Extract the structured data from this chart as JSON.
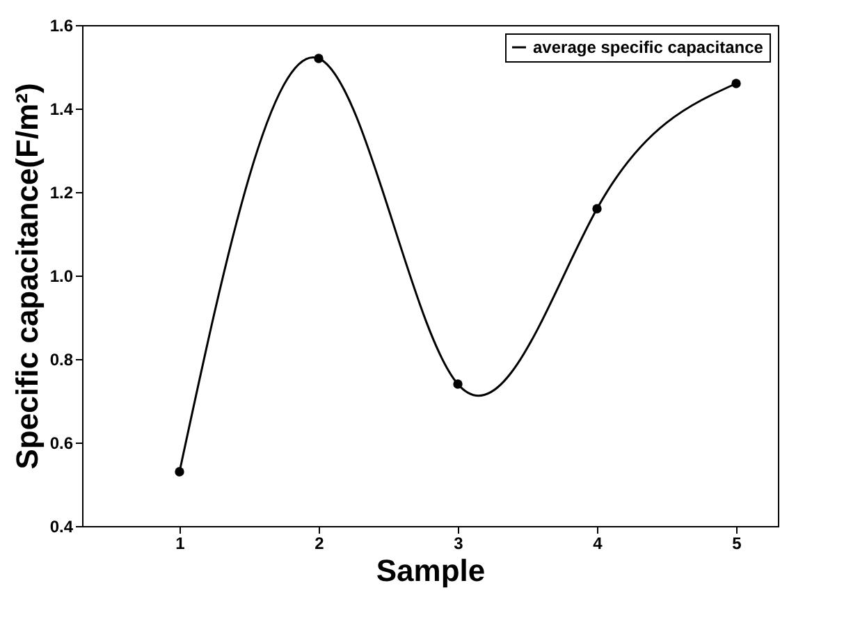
{
  "chart_data": {
    "type": "line",
    "xlabel": "Sample",
    "ylabel": "Specific capacitance(F/m²)",
    "x": [
      1,
      2,
      3,
      4,
      5
    ],
    "series": [
      {
        "name": "average specific capacitance",
        "color": "#000000",
        "values": [
          0.53,
          1.52,
          0.74,
          1.16,
          1.46
        ]
      }
    ],
    "xlim": [
      0.3,
      5.3
    ],
    "xticks": [
      1,
      2,
      3,
      4,
      5
    ],
    "ylim": [
      0.4,
      1.6
    ],
    "yticks": [
      0.4,
      0.6,
      0.8,
      {
        "value": 1.0,
        "label": "1.0"
      },
      1.2,
      1.4,
      1.6
    ],
    "legend": "top right",
    "marker": "circle",
    "line_style": "solid",
    "grid": false
  }
}
